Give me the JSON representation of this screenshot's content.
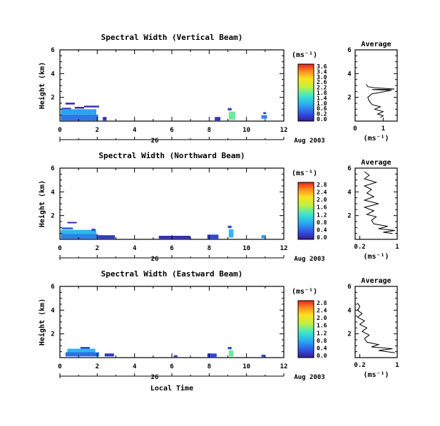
{
  "date_label": "Aug 2003",
  "day_label": "26",
  "x_axis_label": "Local Time",
  "units_label": "(ms⁻¹)",
  "chart_data": [
    {
      "type": "heatmap",
      "title": "Spectral Width (Vertical Beam)",
      "ylabel": "Height (km)",
      "xlim": [
        0,
        12
      ],
      "ylim": [
        0,
        6
      ],
      "xticks": [
        0,
        2,
        4,
        6,
        8,
        10,
        12
      ],
      "yticks": [
        2,
        4,
        6
      ],
      "colorbar": {
        "min": 0.0,
        "max": 3.6,
        "ticks": [
          "3.6",
          "3.4",
          "3.0",
          "2.6",
          "2.2",
          "1.8",
          "1.4",
          "1.0",
          "0.6",
          "0.2",
          "0.0"
        ]
      },
      "cells": [
        {
          "x": 0.05,
          "y": 0.05,
          "w": 2.0,
          "h": 0.5,
          "v": 0.7
        },
        {
          "x": 0.05,
          "y": 0.55,
          "w": 1.9,
          "h": 0.45,
          "v": 1.0
        },
        {
          "x": 0.1,
          "y": 1.0,
          "w": 0.5,
          "h": 0.12,
          "v": 0.2
        },
        {
          "x": 0.8,
          "y": 1.05,
          "w": 0.5,
          "h": 0.15,
          "v": 0.15
        },
        {
          "x": 0.3,
          "y": 1.4,
          "w": 0.5,
          "h": 0.15,
          "v": 0.1
        },
        {
          "x": 1.3,
          "y": 1.15,
          "w": 0.8,
          "h": 0.15,
          "v": 0.2
        },
        {
          "x": 2.3,
          "y": 0.05,
          "w": 0.2,
          "h": 0.3,
          "v": 0.2
        },
        {
          "x": 8.3,
          "y": 0.05,
          "w": 0.3,
          "h": 0.3,
          "v": 0.25
        },
        {
          "x": 9.05,
          "y": 0.1,
          "w": 0.35,
          "h": 0.7,
          "v": 1.8
        },
        {
          "x": 9.0,
          "y": 0.9,
          "w": 0.2,
          "h": 0.2,
          "v": 0.3
        },
        {
          "x": 10.8,
          "y": 0.2,
          "w": 0.3,
          "h": 0.3,
          "v": 0.8
        },
        {
          "x": 10.9,
          "y": 0.6,
          "w": 0.15,
          "h": 0.15,
          "v": 0.2
        }
      ],
      "profile": {
        "title": "Average",
        "xlabel": "(ms⁻¹)",
        "xlim": [
          0,
          1.5
        ],
        "xticks": [
          0,
          1
        ],
        "yticks": [
          2,
          4,
          6
        ],
        "ylim": [
          0,
          6
        ],
        "points": [
          [
            0.9,
            0.3
          ],
          [
            1.0,
            0.45
          ],
          [
            0.8,
            0.6
          ],
          [
            1.0,
            0.8
          ],
          [
            0.7,
            1.0
          ],
          [
            0.9,
            1.2
          ],
          [
            0.6,
            1.4
          ],
          [
            0.5,
            1.7
          ],
          [
            0.45,
            2.0
          ],
          [
            0.6,
            2.3
          ],
          [
            1.1,
            2.5
          ],
          [
            1.3,
            2.6
          ],
          [
            0.6,
            2.65
          ],
          [
            1.4,
            2.7
          ],
          [
            0.7,
            2.8
          ],
          [
            0.45,
            2.9
          ],
          [
            0.4,
            3.1
          ]
        ]
      }
    },
    {
      "type": "heatmap",
      "title": "Spectral Width (Northward Beam)",
      "ylabel": "Height (km)",
      "xlim": [
        0,
        12
      ],
      "ylim": [
        0,
        6
      ],
      "xticks": [
        0,
        2,
        4,
        6,
        8,
        10,
        12
      ],
      "yticks": [
        2,
        4,
        6
      ],
      "colorbar": {
        "min": 0.0,
        "max": 2.8,
        "ticks": [
          "2.8",
          "2.4",
          "2.0",
          "1.6",
          "1.2",
          "0.8",
          "0.4",
          "0.0"
        ]
      },
      "cells": [
        {
          "x": 0.05,
          "y": 0.05,
          "w": 2.0,
          "h": 0.4,
          "v": 0.6
        },
        {
          "x": 0.05,
          "y": 0.45,
          "w": 1.9,
          "h": 0.35,
          "v": 0.9
        },
        {
          "x": 0.1,
          "y": 0.85,
          "w": 0.6,
          "h": 0.15,
          "v": 0.4
        },
        {
          "x": 1.7,
          "y": 0.7,
          "w": 0.2,
          "h": 0.2,
          "v": 0.3
        },
        {
          "x": 0.4,
          "y": 1.35,
          "w": 0.5,
          "h": 0.12,
          "v": 0.1
        },
        {
          "x": 2.05,
          "y": 0.05,
          "w": 0.9,
          "h": 0.3,
          "v": 0.2
        },
        {
          "x": 5.3,
          "y": 0.05,
          "w": 1.7,
          "h": 0.25,
          "v": 0.15
        },
        {
          "x": 7.9,
          "y": 0.05,
          "w": 0.6,
          "h": 0.35,
          "v": 0.3
        },
        {
          "x": 9.05,
          "y": 0.15,
          "w": 0.25,
          "h": 0.7,
          "v": 0.9
        },
        {
          "x": 9.0,
          "y": 0.95,
          "w": 0.2,
          "h": 0.2,
          "v": 0.3
        },
        {
          "x": 10.8,
          "y": 0.1,
          "w": 0.25,
          "h": 0.25,
          "v": 0.7
        }
      ],
      "profile": {
        "title": "Average",
        "xlabel": "(ms⁻¹)",
        "xlim": [
          0.1,
          1.0
        ],
        "xticks": [
          0.2,
          1.0
        ],
        "yticks": [
          2,
          4,
          6
        ],
        "ylim": [
          0,
          6
        ],
        "points": [
          [
            0.9,
            0.5
          ],
          [
            0.7,
            0.6
          ],
          [
            0.95,
            0.75
          ],
          [
            0.6,
            0.9
          ],
          [
            0.8,
            1.1
          ],
          [
            0.5,
            1.3
          ],
          [
            0.45,
            1.6
          ],
          [
            0.55,
            1.9
          ],
          [
            0.35,
            2.1
          ],
          [
            0.5,
            2.4
          ],
          [
            0.3,
            2.7
          ],
          [
            0.6,
            3.0
          ],
          [
            0.3,
            3.3
          ],
          [
            0.5,
            3.6
          ],
          [
            0.35,
            3.9
          ],
          [
            0.45,
            4.2
          ],
          [
            0.3,
            4.5
          ],
          [
            0.55,
            4.8
          ],
          [
            0.3,
            5.1
          ],
          [
            0.4,
            5.4
          ],
          [
            0.3,
            5.7
          ]
        ]
      }
    },
    {
      "type": "heatmap",
      "title": "Spectral Width (Eastward Beam)",
      "ylabel": "Height (km)",
      "xlim": [
        0,
        12
      ],
      "ylim": [
        0,
        6
      ],
      "xticks": [
        0,
        2,
        4,
        6,
        8,
        10,
        12
      ],
      "yticks": [
        2,
        4,
        6
      ],
      "colorbar": {
        "min": 0.0,
        "max": 2.8,
        "ticks": [
          "2.8",
          "2.4",
          "2.0",
          "1.6",
          "1.2",
          "0.8",
          "0.4",
          "0.0"
        ]
      },
      "cells": [
        {
          "x": 0.3,
          "y": 0.1,
          "w": 1.8,
          "h": 0.35,
          "v": 0.5
        },
        {
          "x": 0.4,
          "y": 0.45,
          "w": 1.5,
          "h": 0.3,
          "v": 0.9
        },
        {
          "x": 1.1,
          "y": 0.75,
          "w": 0.5,
          "h": 0.15,
          "v": 0.3
        },
        {
          "x": 2.4,
          "y": 0.1,
          "w": 0.5,
          "h": 0.25,
          "v": 0.2
        },
        {
          "x": 6.1,
          "y": 0.05,
          "w": 0.2,
          "h": 0.15,
          "v": 0.2
        },
        {
          "x": 7.9,
          "y": 0.05,
          "w": 0.5,
          "h": 0.3,
          "v": 0.3
        },
        {
          "x": 9.05,
          "y": 0.1,
          "w": 0.25,
          "h": 0.5,
          "v": 1.4
        },
        {
          "x": 9.0,
          "y": 0.7,
          "w": 0.2,
          "h": 0.2,
          "v": 0.3
        },
        {
          "x": 10.8,
          "y": 0.05,
          "w": 0.2,
          "h": 0.2,
          "v": 0.3
        }
      ],
      "profile": {
        "title": "Average",
        "xlabel": "(ms⁻¹)",
        "xlim": [
          0.1,
          1.0
        ],
        "xticks": [
          0.2,
          1.0
        ],
        "yticks": [
          2,
          4,
          6
        ],
        "ylim": [
          0,
          6
        ],
        "points": [
          [
            0.95,
            0.4
          ],
          [
            0.6,
            0.6
          ],
          [
            0.9,
            0.75
          ],
          [
            0.45,
            0.9
          ],
          [
            0.6,
            1.1
          ],
          [
            0.35,
            1.3
          ],
          [
            0.3,
            1.6
          ],
          [
            0.4,
            1.9
          ],
          [
            0.25,
            2.2
          ],
          [
            0.35,
            2.5
          ],
          [
            0.2,
            2.8
          ],
          [
            0.3,
            3.1
          ],
          [
            0.15,
            3.4
          ],
          [
            0.25,
            3.7
          ],
          [
            0.15,
            4.0
          ],
          [
            0.2,
            4.3
          ],
          [
            0.15,
            4.6
          ]
        ]
      }
    }
  ]
}
